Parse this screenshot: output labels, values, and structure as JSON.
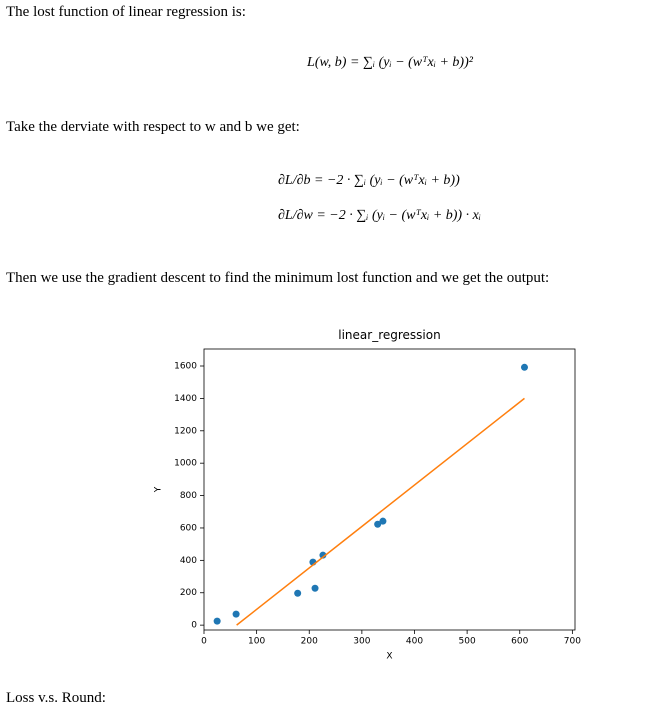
{
  "paragraphs": [
    "The lost function of linear regression is:",
    "Take the derviate with respect to w and b we get:",
    "Then we use the gradient descent to find the minimum lost function and we get the output:",
    "Loss v.s. Round:"
  ],
  "equations": [
    "L(w, b) = ∑ᵢ (yᵢ − (wᵀxᵢ + b))²",
    "∂L/∂b = −2 · ∑ᵢ (yᵢ − (wᵀxᵢ + b))",
    "∂L/∂w = −2 · ∑ᵢ (yᵢ − (wᵀxᵢ + b)) · xᵢ"
  ],
  "chart_data": {
    "type": "scatter",
    "title": "linear_regression",
    "x_label": "X",
    "y_label": "Y",
    "xlim": [
      0,
      705
    ],
    "ylim": [
      -30,
      1705
    ],
    "xticks": [
      0,
      100,
      200,
      300,
      400,
      500,
      600,
      700
    ],
    "yticks": [
      0,
      200,
      400,
      600,
      800,
      1000,
      1200,
      1400,
      1600
    ],
    "series": [
      {
        "type": "scatter",
        "color": "#1f77b4",
        "x": [
          25,
          61,
          178,
          211,
          207,
          226,
          330,
          340,
          609
        ],
        "values": [
          25,
          68,
          197,
          228,
          389,
          432,
          623,
          642,
          1592
        ]
      },
      {
        "type": "line",
        "color": "#ff7f0e",
        "x": [
          62,
          609
        ],
        "values": [
          0,
          1400
        ]
      }
    ]
  }
}
